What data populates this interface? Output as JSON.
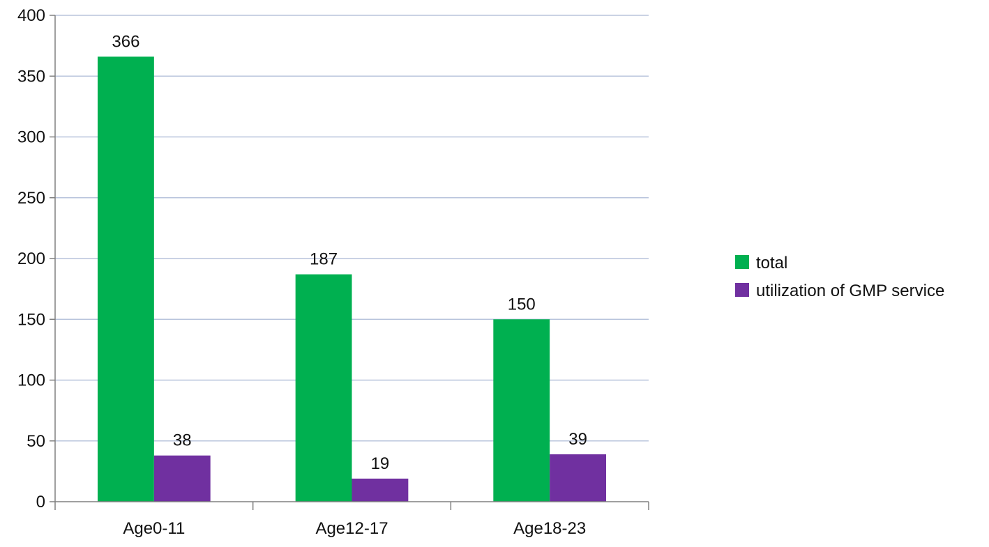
{
  "chart_data": {
    "type": "bar",
    "categories": [
      "Age0-11",
      "Age12-17",
      "Age18-23"
    ],
    "series": [
      {
        "name": "total",
        "values": [
          366,
          187,
          150
        ],
        "color": "#00b050"
      },
      {
        "name": "utilization of GMP service",
        "values": [
          38,
          19,
          39
        ],
        "color": "#7030a0"
      }
    ],
    "ylim": [
      0,
      400
    ],
    "yticks": [
      0,
      50,
      100,
      150,
      200,
      250,
      300,
      350,
      400
    ],
    "grid": true,
    "gridline_color": "#b8c4dc",
    "legend_position": "right",
    "data_labels": true
  }
}
